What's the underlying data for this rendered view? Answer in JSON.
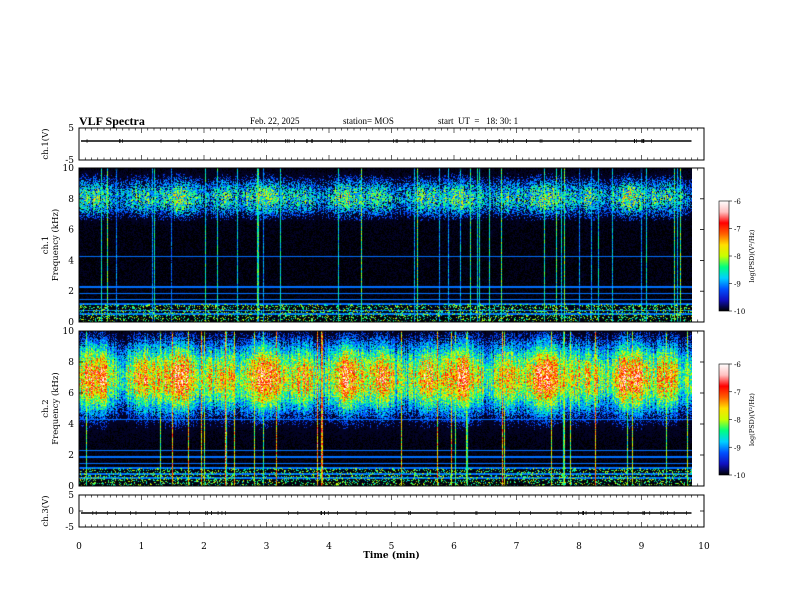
{
  "header": {
    "title": "VLF Spectra",
    "date": "Feb. 22, 2025",
    "station": "station= MOS",
    "start_ut": "start  UT  =   18: 30: 1"
  },
  "colorbar": {
    "label": "log(PSD)(V²/Hz)",
    "ticks": [
      "-6",
      "-7",
      "-8",
      "-9",
      "-10"
    ],
    "range": [
      -10,
      -6
    ],
    "colors": [
      "#000000",
      "#1010c0",
      "#0050ff",
      "#00d0ff",
      "#00ff80",
      "#c8ff00",
      "#ffe000",
      "#ff6000",
      "#ff0000",
      "#ffc0c0",
      "#ffffff"
    ]
  },
  "chart_data": [
    {
      "type": "line",
      "name": "ch.1(V) waveform",
      "ylabel": "ch.1(V)",
      "ylim": [
        -5,
        5
      ],
      "yticks": [
        "5",
        "-5"
      ],
      "xlim": [
        0,
        10
      ],
      "level": 0,
      "color": "#000000"
    },
    {
      "type": "heatmap",
      "name": "ch.1 spectrogram",
      "ylabel": "ch.1\nFrequency (kHz)",
      "ylim": [
        0,
        10
      ],
      "yticks": [
        "10",
        "8",
        "6",
        "4",
        "2",
        "0"
      ],
      "xlim": [
        0,
        9.8
      ],
      "band_center_khz": 8.1,
      "band_peak_log_psd": -8.3,
      "background_log_psd": -10
    },
    {
      "type": "heatmap",
      "name": "ch.2 spectrogram",
      "ylabel": "ch.2\nFrequency (kHz)",
      "ylim": [
        0,
        10
      ],
      "yticks": [
        "10",
        "8",
        "6",
        "4",
        "2",
        "0"
      ],
      "xlim": [
        0,
        9.8
      ],
      "band_center_khz": 7.0,
      "band_peak_log_psd": -6.8,
      "background_log_psd": -10
    },
    {
      "type": "line",
      "name": "ch.3(V) waveform",
      "ylabel": "ch.3(V)",
      "ylim": [
        -5,
        5
      ],
      "yticks": [
        "5",
        "0",
        "-5"
      ],
      "xlim": [
        0,
        10
      ],
      "level": 0,
      "color": "#000000"
    }
  ],
  "xaxis": {
    "label": "Time (min)",
    "range": [
      0,
      10
    ],
    "ticks": [
      "0",
      "1",
      "2",
      "3",
      "4",
      "5",
      "6",
      "7",
      "8",
      "9",
      "10"
    ]
  }
}
